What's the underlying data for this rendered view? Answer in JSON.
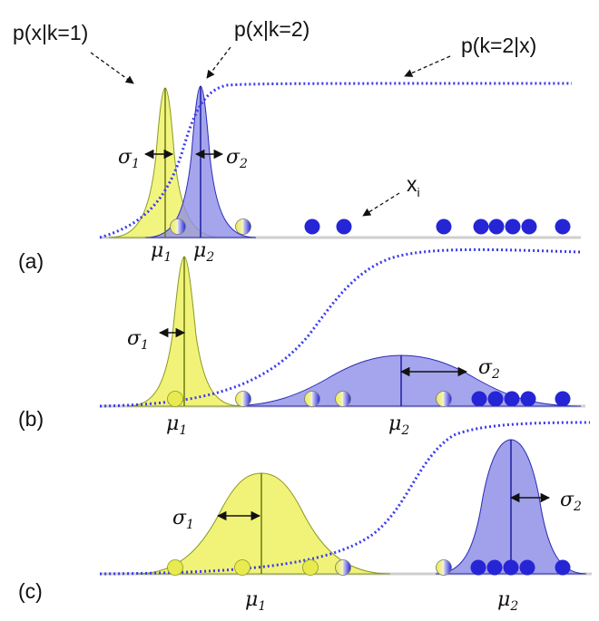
{
  "annotations": {
    "p_k1": "p(x|k=1)",
    "p_k2": "p(x|k=2)",
    "posterior": "p(k=2|x)",
    "xi_base": "x",
    "xi_sub": "i"
  },
  "symbols": {
    "sigma": "σ",
    "mu": "μ",
    "sub1": "1",
    "sub2": "2"
  },
  "panels": [
    {
      "label": "(a)"
    },
    {
      "label": "(b)"
    },
    {
      "label": "(c)"
    }
  ],
  "colors": {
    "yellow_fill": "#f0f26a",
    "yellow_edge": "#8a9a1e",
    "blue_fill": "#8f8fe8",
    "blue_edge": "#2b2bb8",
    "dot": "#2525d6",
    "posterior": "#3a3af0"
  }
}
